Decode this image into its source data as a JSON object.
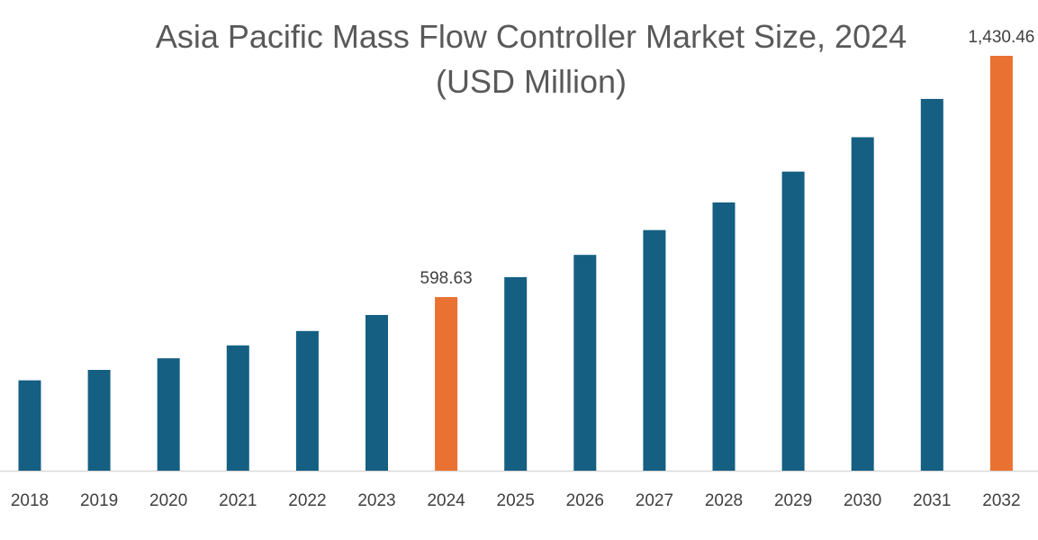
{
  "chart_data": {
    "type": "bar",
    "title": "Asia Pacific Mass Flow Controller Market Size, 2024",
    "subtitle": "(USD Million)",
    "xlabel": "",
    "ylabel": "",
    "categories": [
      "2018",
      "2019",
      "2020",
      "2021",
      "2022",
      "2023",
      "2024",
      "2025",
      "2026",
      "2027",
      "2028",
      "2029",
      "2030",
      "2031",
      "2032"
    ],
    "values": [
      311.6,
      347.5,
      387.5,
      432.0,
      481.6,
      536.9,
      598.63,
      667.4,
      744.1,
      829.6,
      924.9,
      1031.2,
      1149.7,
      1281.8,
      1430.46
    ],
    "data_labels": {
      "2024": "598.63",
      "2032": "1,430.46"
    },
    "highlighted": [
      "2024",
      "2032"
    ],
    "ylim": [
      0,
      1430.46
    ],
    "grid": false,
    "legend": "none",
    "colors": {
      "bar": "#155f82",
      "highlight": "#e97132",
      "axis": "#d9d9d9",
      "title": "#595959"
    }
  }
}
